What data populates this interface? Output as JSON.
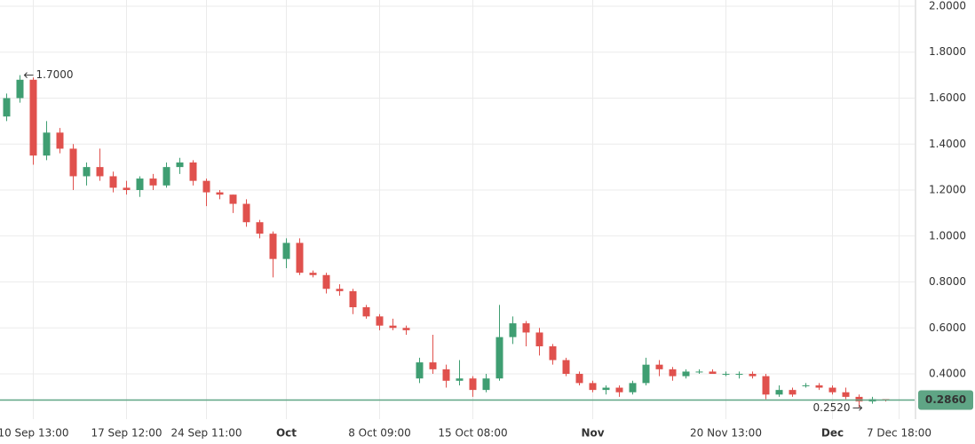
{
  "chart_data": {
    "type": "candlestick",
    "categories": [
      null,
      null,
      "10 Sep 13:00",
      null,
      null,
      null,
      null,
      null,
      null,
      "17 Sep 12:00",
      null,
      null,
      null,
      null,
      null,
      "24 Sep 11:00",
      null,
      null,
      null,
      null,
      null,
      "Oct",
      null,
      null,
      null,
      null,
      null,
      null,
      "8 Oct 09:00",
      null,
      null,
      null,
      null,
      null,
      null,
      "15 Oct 08:00",
      null,
      null,
      null,
      null,
      null,
      null,
      null,
      null,
      "Nov",
      null,
      null,
      null,
      null,
      null,
      null,
      null,
      null,
      null,
      "20 Nov 13:00",
      null,
      null,
      null,
      null,
      null,
      null,
      null,
      "Dec",
      null,
      null,
      null,
      null,
      "7 Dec 18:00"
    ],
    "open": [
      1.52,
      1.6,
      1.68,
      1.35,
      1.45,
      1.38,
      1.26,
      1.3,
      1.26,
      1.21,
      1.2,
      1.25,
      1.22,
      1.3,
      1.32,
      1.24,
      1.19,
      1.18,
      1.14,
      1.06,
      1.01,
      0.9,
      0.97,
      0.84,
      0.83,
      0.77,
      0.76,
      0.69,
      0.65,
      0.61,
      0.6,
      0.38,
      0.45,
      0.42,
      0.37,
      0.38,
      0.33,
      0.38,
      0.56,
      0.62,
      0.58,
      0.52,
      0.46,
      0.4,
      0.36,
      0.33,
      0.34,
      0.32,
      0.36,
      0.44,
      0.42,
      0.39,
      0.41,
      0.41,
      0.4,
      0.4,
      0.4,
      0.39,
      0.31,
      0.33,
      0.35,
      0.35,
      0.34,
      0.32,
      0.3,
      0.28,
      0.29,
      null
    ],
    "high": [
      1.62,
      1.7,
      1.69,
      1.5,
      1.47,
      1.4,
      1.32,
      1.38,
      1.28,
      1.24,
      1.26,
      1.27,
      1.32,
      1.34,
      1.33,
      1.25,
      1.2,
      1.18,
      1.16,
      1.07,
      1.02,
      0.99,
      0.99,
      0.85,
      0.84,
      0.79,
      0.77,
      0.7,
      0.66,
      0.64,
      0.61,
      0.47,
      0.57,
      0.44,
      0.46,
      0.39,
      0.4,
      0.7,
      0.65,
      0.63,
      0.6,
      0.53,
      0.47,
      0.41,
      0.37,
      0.35,
      0.35,
      0.37,
      0.47,
      0.46,
      0.43,
      0.42,
      0.42,
      0.42,
      0.41,
      0.41,
      0.41,
      0.4,
      0.35,
      0.34,
      0.36,
      0.36,
      0.35,
      0.34,
      0.31,
      0.3,
      0.29,
      null
    ],
    "low": [
      1.5,
      1.58,
      1.31,
      1.33,
      1.36,
      1.2,
      1.22,
      1.24,
      1.19,
      1.18,
      1.17,
      1.2,
      1.21,
      1.27,
      1.22,
      1.13,
      1.16,
      1.1,
      1.04,
      0.99,
      0.82,
      0.86,
      0.83,
      0.82,
      0.75,
      0.74,
      0.66,
      0.64,
      0.59,
      0.59,
      0.57,
      0.36,
      0.4,
      0.34,
      0.35,
      0.3,
      0.32,
      0.37,
      0.53,
      0.52,
      0.48,
      0.44,
      0.39,
      0.35,
      0.32,
      0.31,
      0.3,
      0.31,
      0.35,
      0.39,
      0.37,
      0.38,
      0.4,
      0.4,
      0.39,
      0.38,
      0.38,
      0.29,
      0.3,
      0.3,
      0.34,
      0.33,
      0.31,
      0.29,
      0.252,
      0.27,
      0.28,
      null
    ],
    "close": [
      1.6,
      1.68,
      1.35,
      1.45,
      1.38,
      1.26,
      1.3,
      1.26,
      1.21,
      1.2,
      1.25,
      1.22,
      1.3,
      1.32,
      1.24,
      1.19,
      1.18,
      1.14,
      1.06,
      1.01,
      0.9,
      0.97,
      0.84,
      0.83,
      0.77,
      0.76,
      0.69,
      0.65,
      0.61,
      0.6,
      0.59,
      0.45,
      0.42,
      0.37,
      0.38,
      0.33,
      0.38,
      0.56,
      0.62,
      0.58,
      0.52,
      0.46,
      0.4,
      0.36,
      0.33,
      0.34,
      0.32,
      0.36,
      0.44,
      0.42,
      0.39,
      0.41,
      0.41,
      0.4,
      0.4,
      0.4,
      0.39,
      0.31,
      0.33,
      0.31,
      0.35,
      0.34,
      0.32,
      0.3,
      0.28,
      0.29,
      0.286,
      null
    ],
    "up_color": "#3f9e72",
    "down_color": "#e0514d",
    "ylim": [
      0.203,
      2.027
    ],
    "yticks": [
      {
        "value": 0.4,
        "label": "0.4000"
      },
      {
        "value": 0.6,
        "label": "0.6000"
      },
      {
        "value": 0.8,
        "label": "0.8000"
      },
      {
        "value": 1.0,
        "label": "1.0000"
      },
      {
        "value": 1.2,
        "label": "1.2000"
      },
      {
        "value": 1.4,
        "label": "1.4000"
      },
      {
        "value": 1.6,
        "label": "1.6000"
      },
      {
        "value": 1.8,
        "label": "1.8000"
      },
      {
        "value": 2.0,
        "label": "2.0000"
      }
    ],
    "grid": true,
    "max_label": "1.7000",
    "min_label": "0.2520",
    "last_price": {
      "value": 0.286,
      "label": "0.2860",
      "color": "#5fa585"
    }
  }
}
